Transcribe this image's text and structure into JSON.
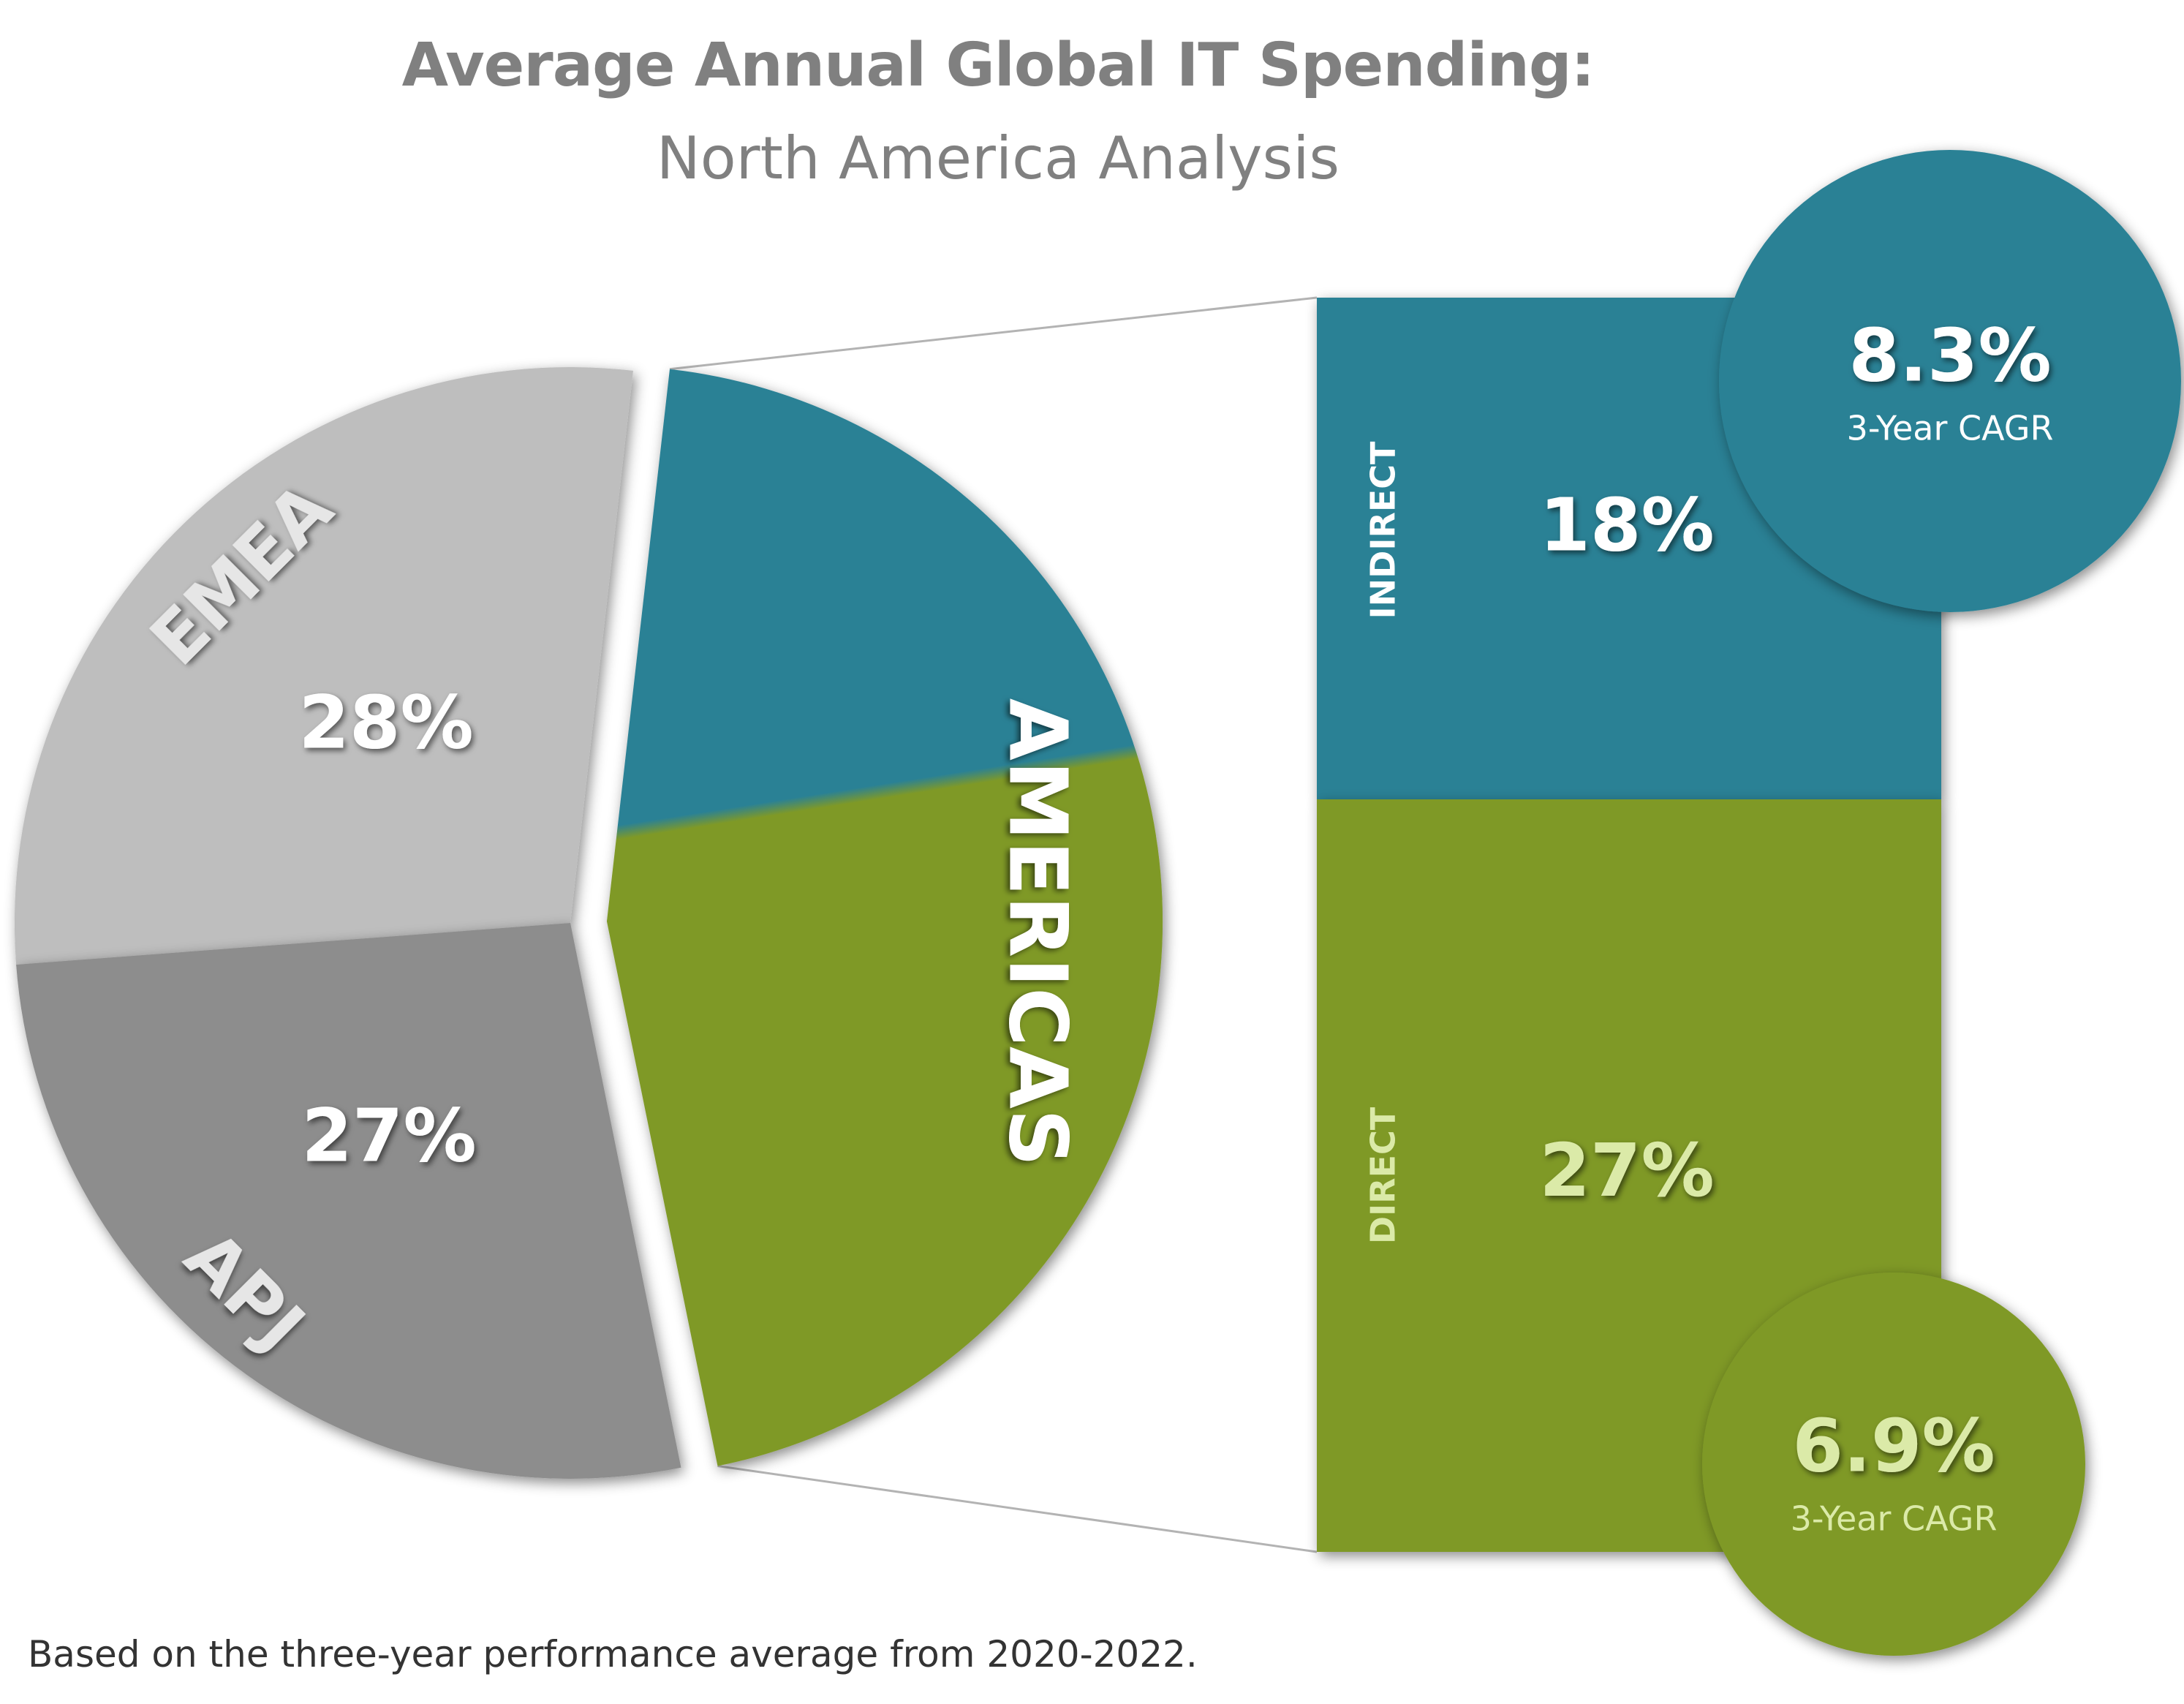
{
  "header": {
    "title": "Average Annual Global IT Spending:",
    "subtitle": "North America Analysis"
  },
  "footnote": "Based on the three-year performance average from 2020-2022.",
  "colors": {
    "emea": "#bebebe",
    "apj": "#8d8d8d",
    "americas_indirect": "#2a8195",
    "americas_direct": "#7f9927",
    "label_light": "#e6e6e6",
    "direct_text": "#dbeaa8",
    "connector": "#b3b3b3"
  },
  "chart_data": [
    {
      "type": "pie",
      "title": "Average Annual Global IT Spending:",
      "subtitle": "North America Analysis",
      "slices": [
        {
          "name": "EMEA",
          "value": 28,
          "label": "28%",
          "color": "#bebebe"
        },
        {
          "name": "APJ",
          "value": 27,
          "label": "27%",
          "color": "#8d8d8d"
        },
        {
          "name": "AMERICAS",
          "value": 45,
          "label": "",
          "color": "#7f9927",
          "exploded": true
        }
      ]
    },
    {
      "type": "bar",
      "stacked": true,
      "series": [
        {
          "name": "INDIRECT",
          "value": 18,
          "label": "18%",
          "cagr": "8.3%",
          "cagr_label": "3-Year CAGR",
          "color": "#2a8195"
        },
        {
          "name": "DIRECT",
          "value": 27,
          "label": "27%",
          "cagr": "6.9%",
          "cagr_label": "3-Year CAGR",
          "color": "#7f9927"
        }
      ]
    }
  ]
}
